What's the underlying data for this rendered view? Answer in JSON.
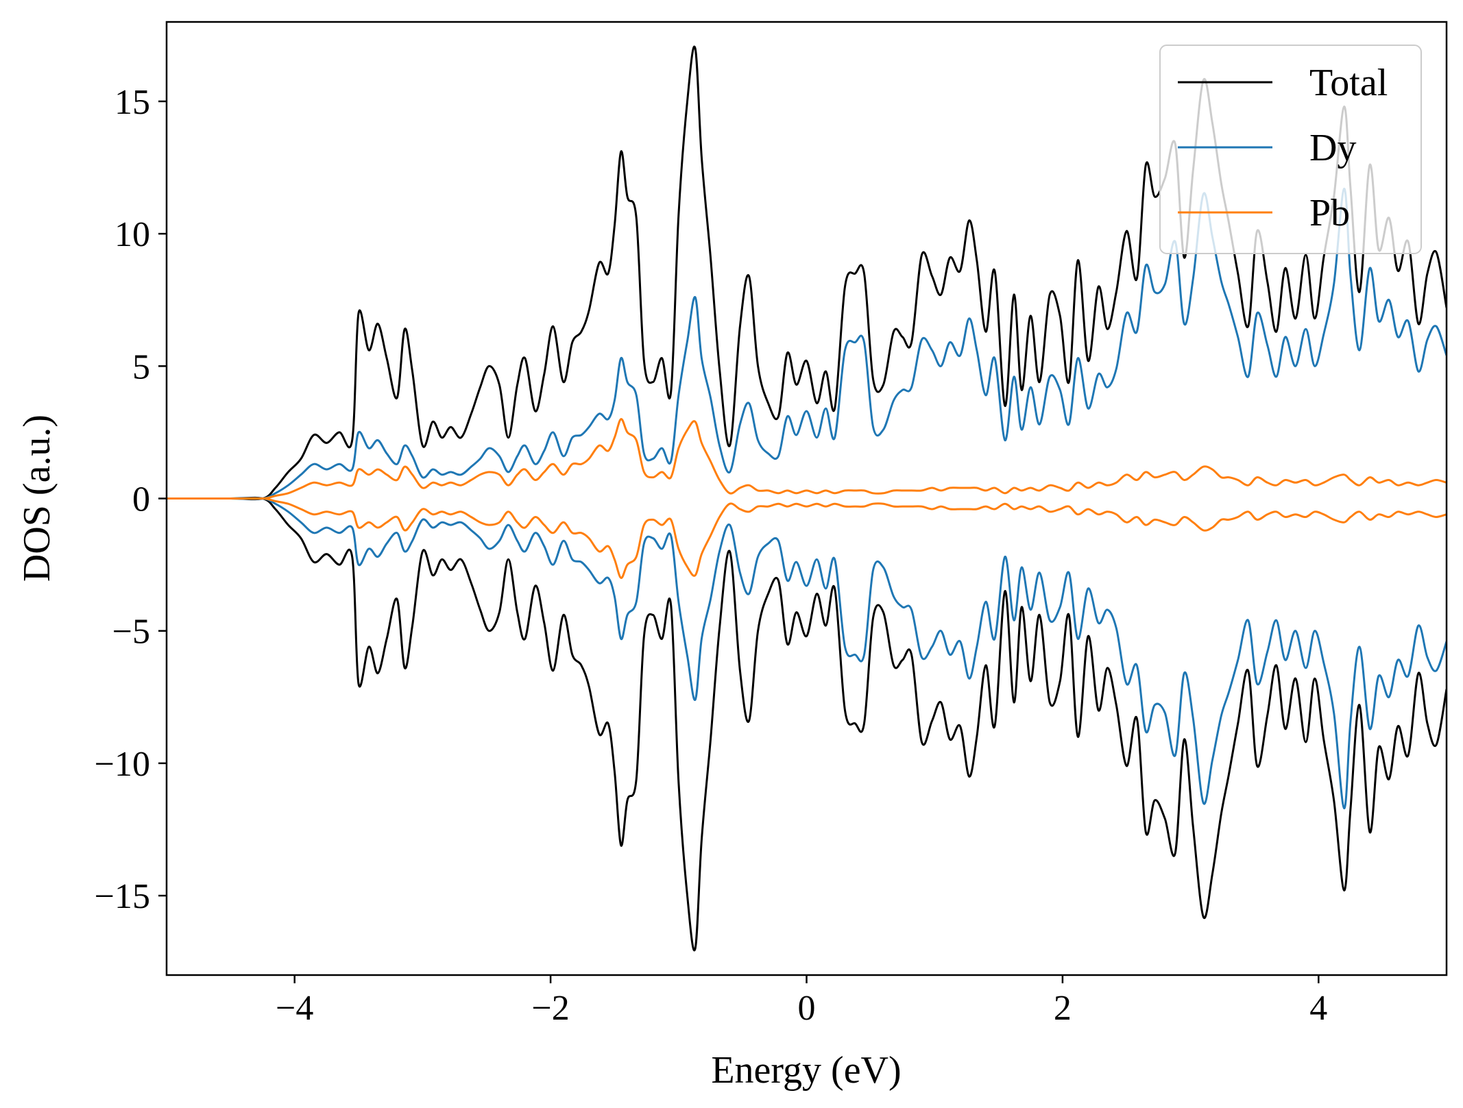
{
  "chart_data": {
    "type": "line",
    "xlabel": "Energy (eV)",
    "ylabel": "DOS (a.u.)",
    "xlim": [
      -5,
      5
    ],
    "ylim": [
      -18,
      18
    ],
    "xticks": [
      -4,
      -2,
      0,
      2,
      4
    ],
    "xtick_labels": [
      "−4",
      "−2",
      "0",
      "2",
      "4"
    ],
    "yticks": [
      15,
      10,
      5,
      0,
      -5,
      -10,
      -15
    ],
    "ytick_labels": [
      "15",
      "10",
      "5",
      "0",
      "−5",
      "−10",
      "−15"
    ],
    "grid": false,
    "legend_position": "top-right",
    "mirrored_spin_down": true,
    "x": [
      -5.0,
      -4.5,
      -4.25,
      -4.15,
      -4.05,
      -3.95,
      -3.85,
      -3.75,
      -3.65,
      -3.55,
      -3.5,
      -3.42,
      -3.35,
      -3.28,
      -3.2,
      -3.14,
      -3.08,
      -3.0,
      -2.92,
      -2.85,
      -2.78,
      -2.7,
      -2.62,
      -2.55,
      -2.48,
      -2.4,
      -2.33,
      -2.26,
      -2.2,
      -2.12,
      -2.05,
      -1.98,
      -1.9,
      -1.83,
      -1.76,
      -1.7,
      -1.62,
      -1.55,
      -1.5,
      -1.45,
      -1.4,
      -1.33,
      -1.27,
      -1.2,
      -1.13,
      -1.06,
      -1.0,
      -0.93,
      -0.87,
      -0.82,
      -0.75,
      -0.68,
      -0.6,
      -0.52,
      -0.45,
      -0.38,
      -0.3,
      -0.22,
      -0.15,
      -0.08,
      0.0,
      0.08,
      0.15,
      0.22,
      0.3,
      0.38,
      0.45,
      0.52,
      0.6,
      0.68,
      0.75,
      0.82,
      0.9,
      0.98,
      1.05,
      1.12,
      1.2,
      1.27,
      1.33,
      1.4,
      1.47,
      1.55,
      1.62,
      1.68,
      1.75,
      1.82,
      1.9,
      1.98,
      2.05,
      2.12,
      2.2,
      2.28,
      2.35,
      2.42,
      2.5,
      2.58,
      2.65,
      2.72,
      2.8,
      2.88,
      2.95,
      3.02,
      3.1,
      3.17,
      3.24,
      3.3,
      3.37,
      3.45,
      3.52,
      3.6,
      3.67,
      3.74,
      3.82,
      3.9,
      3.97,
      4.04,
      4.12,
      4.2,
      4.25,
      4.32,
      4.4,
      4.47,
      4.55,
      4.62,
      4.7,
      4.78,
      4.85,
      4.92,
      5.0
    ],
    "series": [
      {
        "name": "Total",
        "color": "#000000",
        "values": [
          0.0,
          0.0,
          0.0,
          0.4,
          1.0,
          1.5,
          2.4,
          2.1,
          2.5,
          2.2,
          7.0,
          5.6,
          6.6,
          5.3,
          3.8,
          6.4,
          4.8,
          2.0,
          2.9,
          2.3,
          2.7,
          2.3,
          3.2,
          4.2,
          5.0,
          4.3,
          2.3,
          4.3,
          5.3,
          3.3,
          4.7,
          6.5,
          4.4,
          5.9,
          6.3,
          7.1,
          8.9,
          8.5,
          10.3,
          13.1,
          11.4,
          10.6,
          5.2,
          4.4,
          5.3,
          4.0,
          10.7,
          15.1,
          17.0,
          12.9,
          9.1,
          4.9,
          2.0,
          6.5,
          8.4,
          5.0,
          3.6,
          3.1,
          5.5,
          4.3,
          5.2,
          3.6,
          4.8,
          3.4,
          8.0,
          8.5,
          8.5,
          4.5,
          4.3,
          6.3,
          6.1,
          5.9,
          9.2,
          8.4,
          7.7,
          9.1,
          8.6,
          10.5,
          9.0,
          6.3,
          8.6,
          3.5,
          7.7,
          4.1,
          6.9,
          4.4,
          7.7,
          6.9,
          4.4,
          9.0,
          5.2,
          8.0,
          6.4,
          7.8,
          10.1,
          8.3,
          12.6,
          11.4,
          12.1,
          13.4,
          9.1,
          12.4,
          15.8,
          14.2,
          11.9,
          10.4,
          8.5,
          6.5,
          10.1,
          8.2,
          6.3,
          8.7,
          6.8,
          9.2,
          6.8,
          9.1,
          11.4,
          14.8,
          11.7,
          7.8,
          12.6,
          9.4,
          10.6,
          8.6,
          9.7,
          6.6,
          8.5,
          9.3,
          7.2
        ]
      },
      {
        "name": "Dy",
        "color": "#1f77b4",
        "values": [
          0.0,
          0.0,
          0.0,
          0.2,
          0.5,
          0.9,
          1.3,
          1.1,
          1.3,
          1.1,
          2.5,
          1.9,
          2.2,
          1.7,
          1.3,
          2.0,
          1.6,
          0.8,
          1.1,
          0.9,
          1.0,
          0.9,
          1.2,
          1.5,
          1.9,
          1.6,
          1.0,
          1.6,
          2.0,
          1.3,
          1.8,
          2.5,
          1.6,
          2.3,
          2.4,
          2.7,
          3.2,
          3.0,
          3.7,
          5.3,
          4.4,
          3.9,
          1.7,
          1.5,
          1.9,
          1.4,
          3.9,
          6.0,
          7.6,
          5.3,
          3.8,
          2.0,
          1.0,
          2.8,
          3.6,
          2.2,
          1.7,
          1.6,
          3.1,
          2.4,
          3.3,
          2.3,
          3.4,
          2.3,
          5.6,
          5.9,
          5.9,
          2.7,
          2.6,
          3.7,
          4.1,
          4.2,
          6.0,
          5.6,
          5.0,
          5.9,
          5.4,
          6.8,
          5.6,
          3.9,
          5.3,
          2.2,
          4.6,
          2.6,
          4.2,
          2.8,
          4.6,
          4.1,
          2.8,
          5.3,
          3.4,
          4.7,
          4.2,
          4.9,
          7.0,
          6.3,
          8.8,
          7.8,
          8.1,
          9.7,
          6.6,
          8.3,
          11.5,
          9.9,
          8.2,
          7.3,
          6.1,
          4.6,
          7.0,
          5.8,
          4.6,
          6.1,
          5.0,
          6.4,
          5.0,
          6.2,
          8.1,
          11.7,
          8.4,
          5.6,
          8.7,
          6.7,
          7.5,
          6.1,
          6.7,
          4.8,
          6.0,
          6.5,
          5.4
        ]
      },
      {
        "name": "Pb",
        "color": "#ff7f0e",
        "values": [
          0.0,
          0.0,
          0.0,
          0.1,
          0.2,
          0.4,
          0.6,
          0.5,
          0.6,
          0.5,
          1.1,
          0.9,
          1.1,
          0.9,
          0.7,
          1.2,
          0.9,
          0.4,
          0.6,
          0.5,
          0.6,
          0.5,
          0.7,
          0.9,
          1.0,
          0.9,
          0.5,
          0.9,
          1.1,
          0.7,
          1.0,
          1.3,
          0.9,
          1.3,
          1.3,
          1.5,
          2.0,
          1.8,
          2.3,
          3.0,
          2.5,
          2.2,
          1.0,
          0.8,
          1.0,
          0.8,
          1.9,
          2.6,
          2.9,
          2.1,
          1.4,
          0.7,
          0.2,
          0.4,
          0.5,
          0.3,
          0.3,
          0.2,
          0.3,
          0.2,
          0.3,
          0.2,
          0.3,
          0.2,
          0.3,
          0.3,
          0.3,
          0.2,
          0.2,
          0.3,
          0.3,
          0.3,
          0.3,
          0.4,
          0.3,
          0.4,
          0.4,
          0.4,
          0.4,
          0.3,
          0.4,
          0.2,
          0.4,
          0.3,
          0.4,
          0.3,
          0.5,
          0.4,
          0.3,
          0.6,
          0.4,
          0.6,
          0.5,
          0.6,
          0.9,
          0.7,
          1.0,
          0.8,
          0.9,
          1.0,
          0.7,
          0.9,
          1.2,
          1.1,
          0.8,
          0.8,
          0.7,
          0.5,
          0.8,
          0.6,
          0.5,
          0.7,
          0.6,
          0.7,
          0.5,
          0.6,
          0.8,
          0.9,
          0.7,
          0.5,
          0.8,
          0.6,
          0.7,
          0.5,
          0.6,
          0.5,
          0.6,
          0.7,
          0.6
        ]
      }
    ]
  }
}
